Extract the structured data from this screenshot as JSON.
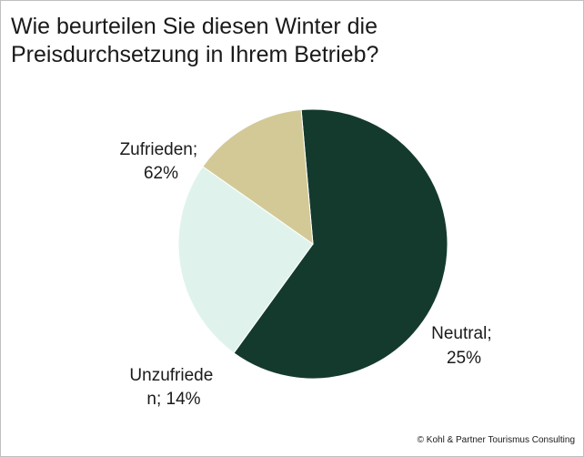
{
  "chart_data": {
    "type": "pie",
    "title_lines": [
      "Wie beurteilen Sie diesen Winter die",
      "Preisdurchsetzung in Ihrem Betrieb?"
    ],
    "slices": [
      {
        "label_lines": [
          "Zufrieden;",
          "62%"
        ],
        "value": 62,
        "color": "#143a2e"
      },
      {
        "label_lines": [
          "Neutral;",
          "25%"
        ],
        "value": 25,
        "color": "#dff3ec"
      },
      {
        "label_lines": [
          "Unzufriede",
          "n; 14%"
        ],
        "value": 14,
        "color": "#d3c996"
      }
    ],
    "legend": "none"
  },
  "footer": {
    "copyright": "© Kohl & Partner Tourismus Consulting"
  }
}
